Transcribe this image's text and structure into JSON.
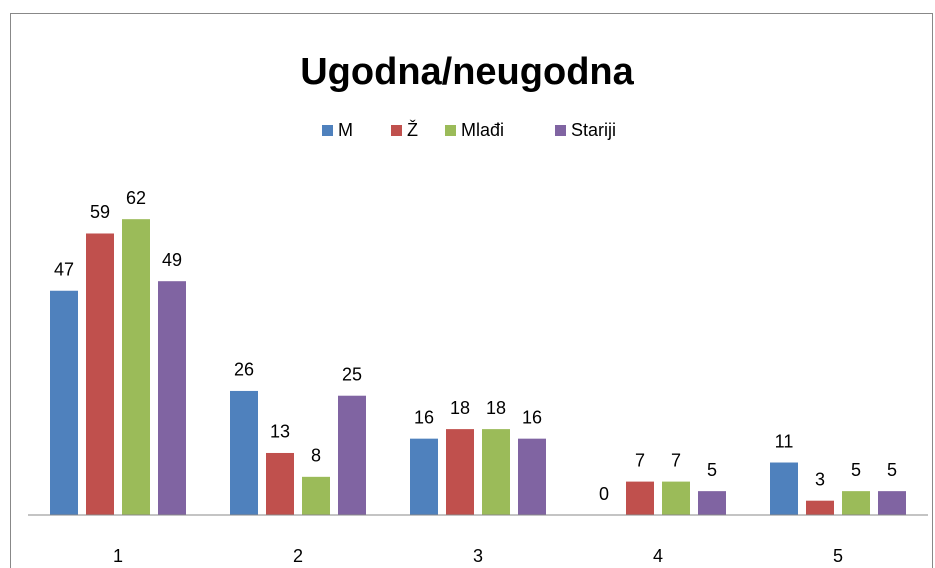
{
  "chart_data": {
    "type": "bar",
    "title": "Ugodna/neugodna",
    "categories": [
      "1",
      "2",
      "3",
      "4",
      "5"
    ],
    "series": [
      {
        "name": "M",
        "color": "#4f81bd",
        "values": [
          47,
          26,
          16,
          0,
          11
        ]
      },
      {
        "name": "Ž",
        "color": "#c0504d",
        "values": [
          59,
          13,
          18,
          7,
          3
        ]
      },
      {
        "name": "Mlađi",
        "color": "#9bbb59",
        "values": [
          62,
          8,
          18,
          7,
          5
        ]
      },
      {
        "name": "Stariji",
        "color": "#8064a2",
        "values": [
          49,
          25,
          16,
          5,
          5
        ]
      }
    ],
    "ylim": [
      0,
      70
    ],
    "legend": "top"
  }
}
